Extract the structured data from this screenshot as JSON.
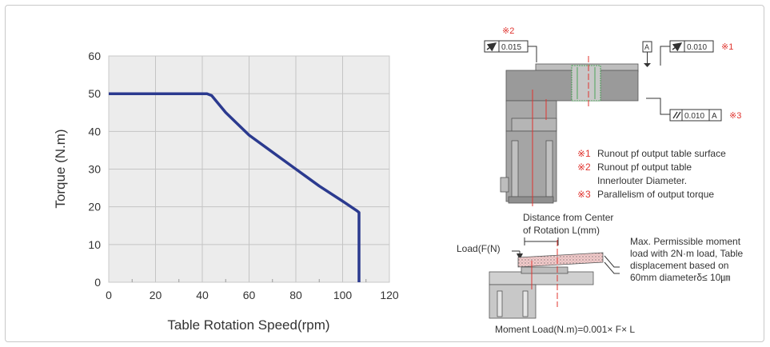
{
  "chart_data": {
    "type": "line",
    "xlabel": "Table Rotation Speed(rpm)",
    "ylabel": "Torque (N.m)",
    "xlim": [
      0,
      120
    ],
    "ylim": [
      0,
      60
    ],
    "xticks": [
      "0",
      "20",
      "40",
      "60",
      "80",
      "100",
      "120"
    ],
    "yticks": [
      "0",
      "10",
      "20",
      "30",
      "40",
      "50",
      "60"
    ],
    "grid": true,
    "x": [
      0,
      42,
      44,
      50,
      60,
      70,
      80,
      90,
      100,
      106,
      107,
      107
    ],
    "y": [
      50,
      50,
      49.5,
      45,
      39,
      34.5,
      30,
      25.5,
      21.5,
      19,
      18.5,
      0
    ],
    "color": "#2b3a8f"
  },
  "diagram": {
    "callout_2": "※2",
    "callout_1": "※1",
    "callout_3": "※3",
    "tol_runout_diameter": "0.015",
    "datum_a": "A",
    "tol_runout_surface": "0.010",
    "tol_parallel": "0.010",
    "tol_parallel_datum": "A",
    "note_1_mark": "※1",
    "note_1": "Runout pf output table surface",
    "note_2_mark": "※2",
    "note_2_a": "Runout pf output table",
    "note_2_b": "Innerlouter Diameter.",
    "note_3_mark": "※3",
    "note_3": "Parallelism of output torque",
    "distance_a": "Distance from Center",
    "distance_b": "of Rotation L(mm)",
    "load_label": "Load(F(N)",
    "moment_a": "Max. Permissible moment",
    "moment_b": "load with 2N·m load, Table",
    "moment_c": "displacement based on",
    "moment_d": "60mm diameterδ≤ 10㎛",
    "moment_formula": "Moment Load(N.m)=0.001× F× L"
  }
}
